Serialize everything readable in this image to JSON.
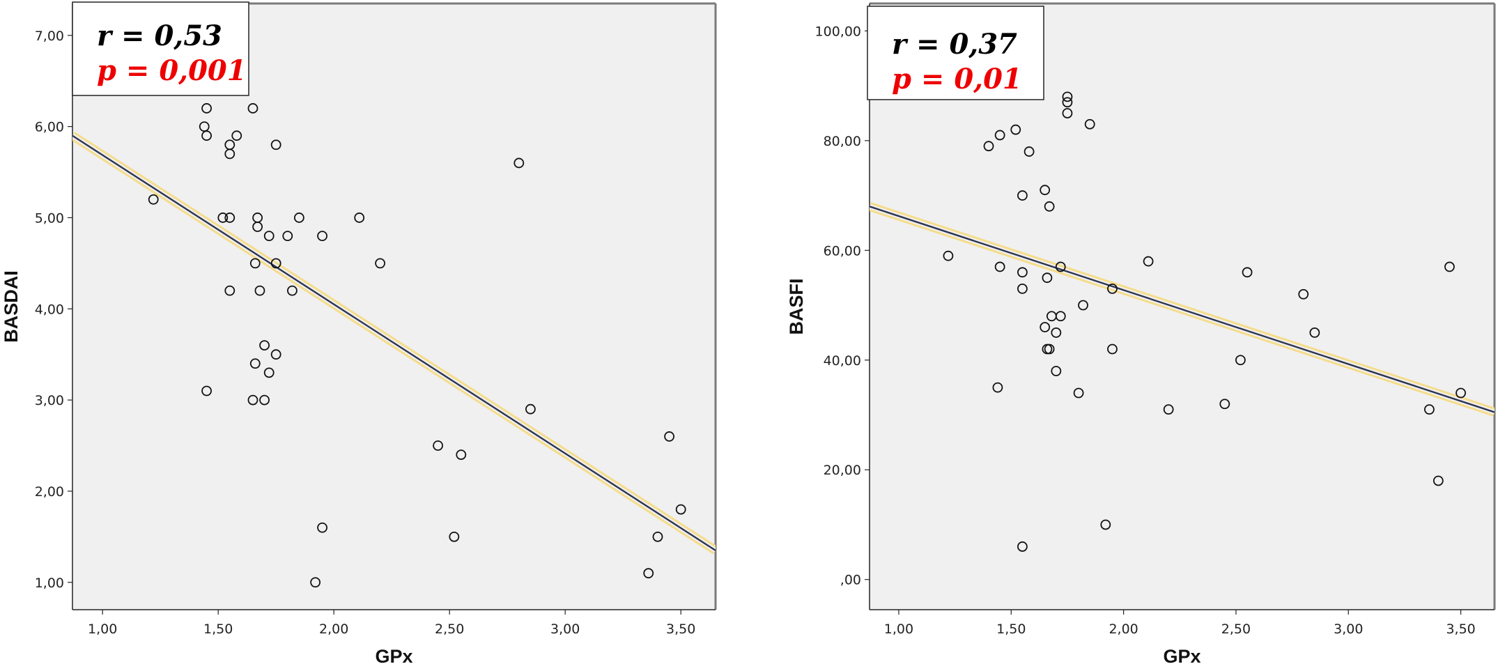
{
  "chart_data": [
    {
      "type": "scatter",
      "xlabel": "GPx",
      "ylabel": "BASDAI",
      "xlim": [
        0.87,
        3.65
      ],
      "ylim": [
        0.7,
        7.35
      ],
      "x_ticks": [
        "1,00",
        "1,50",
        "2,00",
        "2,50",
        "3,00",
        "3,50"
      ],
      "x_tick_values": [
        1.0,
        1.5,
        2.0,
        2.5,
        3.0,
        3.5
      ],
      "y_ticks": [
        "1,00",
        "2,00",
        "3,00",
        "4,00",
        "5,00",
        "6,00",
        "7,00"
      ],
      "y_tick_values": [
        1,
        2,
        3,
        4,
        5,
        6,
        7
      ],
      "annotation": {
        "r_text": "r = 0,53",
        "p_text": "p = 0,001"
      },
      "fit_line": {
        "x": [
          0.87,
          3.65
        ],
        "y": [
          5.9,
          1.35
        ]
      },
      "grid": false,
      "points": [
        [
          1.22,
          5.2
        ],
        [
          1.44,
          6.0
        ],
        [
          1.45,
          6.2
        ],
        [
          1.45,
          5.9
        ],
        [
          1.45,
          3.1
        ],
        [
          1.52,
          5.0
        ],
        [
          1.55,
          5.0
        ],
        [
          1.55,
          5.8
        ],
        [
          1.55,
          5.7
        ],
        [
          1.55,
          4.2
        ],
        [
          1.58,
          5.9
        ],
        [
          1.65,
          6.2
        ],
        [
          1.65,
          3.0
        ],
        [
          1.66,
          4.5
        ],
        [
          1.66,
          3.4
        ],
        [
          1.67,
          5.0
        ],
        [
          1.67,
          4.9
        ],
        [
          1.68,
          4.2
        ],
        [
          1.7,
          3.6
        ],
        [
          1.7,
          3.0
        ],
        [
          1.72,
          4.8
        ],
        [
          1.72,
          3.3
        ],
        [
          1.75,
          5.8
        ],
        [
          1.75,
          4.5
        ],
        [
          1.75,
          3.5
        ],
        [
          1.8,
          4.8
        ],
        [
          1.82,
          4.2
        ],
        [
          1.85,
          5.0
        ],
        [
          1.92,
          1.0
        ],
        [
          1.95,
          4.8
        ],
        [
          1.95,
          1.6
        ],
        [
          2.11,
          5.0
        ],
        [
          2.2,
          4.5
        ],
        [
          2.45,
          2.5
        ],
        [
          2.52,
          1.5
        ],
        [
          2.55,
          2.4
        ],
        [
          2.8,
          5.6
        ],
        [
          2.85,
          2.9
        ],
        [
          3.36,
          1.1
        ],
        [
          3.4,
          1.5
        ],
        [
          3.45,
          2.6
        ],
        [
          3.5,
          1.8
        ]
      ]
    },
    {
      "type": "scatter",
      "xlabel": "GPx",
      "ylabel": "BASFI",
      "xlim": [
        0.87,
        3.65
      ],
      "ylim": [
        -5.5,
        105
      ],
      "x_ticks": [
        "1,00",
        "1,50",
        "2,00",
        "2,50",
        "3,00",
        "3,50"
      ],
      "x_tick_values": [
        1.0,
        1.5,
        2.0,
        2.5,
        3.0,
        3.5
      ],
      "y_ticks": [
        ",00",
        "20,00",
        "40,00",
        "60,00",
        "80,00",
        "100,00"
      ],
      "y_tick_values": [
        0,
        20,
        40,
        60,
        80,
        100
      ],
      "annotation": {
        "r_text": "r = 0,37",
        "p_text": "p = 0,01"
      },
      "fit_line": {
        "x": [
          0.87,
          3.65
        ],
        "y": [
          68,
          30.5
        ]
      },
      "grid": false,
      "points": [
        [
          1.22,
          59
        ],
        [
          1.4,
          79
        ],
        [
          1.44,
          35
        ],
        [
          1.45,
          81
        ],
        [
          1.45,
          57
        ],
        [
          1.52,
          82
        ],
        [
          1.55,
          70
        ],
        [
          1.55,
          56
        ],
        [
          1.55,
          53
        ],
        [
          1.55,
          6
        ],
        [
          1.58,
          78
        ],
        [
          1.65,
          71
        ],
        [
          1.65,
          46
        ],
        [
          1.66,
          55
        ],
        [
          1.66,
          42
        ],
        [
          1.67,
          68
        ],
        [
          1.67,
          42
        ],
        [
          1.68,
          48
        ],
        [
          1.7,
          45
        ],
        [
          1.7,
          38
        ],
        [
          1.72,
          57
        ],
        [
          1.72,
          48
        ],
        [
          1.75,
          88
        ],
        [
          1.75,
          87
        ],
        [
          1.75,
          85
        ],
        [
          1.8,
          34
        ],
        [
          1.82,
          50
        ],
        [
          1.85,
          83
        ],
        [
          1.92,
          10
        ],
        [
          1.95,
          53
        ],
        [
          1.95,
          42
        ],
        [
          2.11,
          58
        ],
        [
          2.2,
          31
        ],
        [
          2.45,
          32
        ],
        [
          2.52,
          40
        ],
        [
          2.55,
          56
        ],
        [
          2.8,
          52
        ],
        [
          2.85,
          45
        ],
        [
          3.36,
          31
        ],
        [
          3.4,
          18
        ],
        [
          3.45,
          57
        ],
        [
          3.5,
          34
        ]
      ]
    }
  ]
}
